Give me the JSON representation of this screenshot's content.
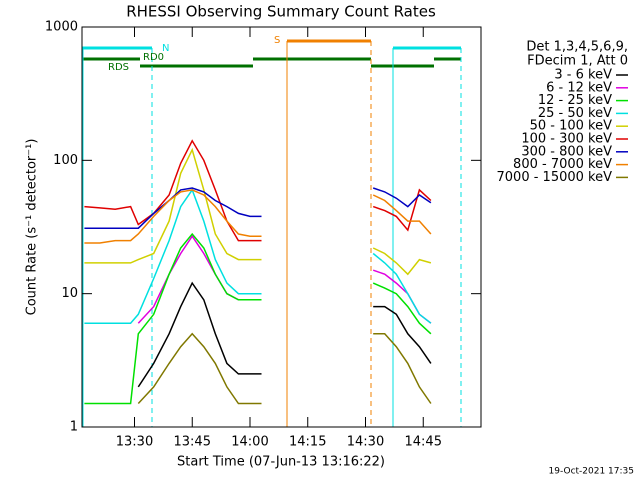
{
  "chart_data": {
    "type": "line",
    "title": "RHESSI Observing Summary Count Rates",
    "x_label": "Start Time (07-Jun-13 13:16:22)",
    "y_label": "Count Rate (s⁻¹ detector⁻¹)",
    "legend_header": [
      "Det 1,3,4,5,6,9,",
      "FDecim 1, Att 0"
    ],
    "flags": [
      "N",
      "RD0",
      "RDS",
      "S"
    ],
    "footer": "19-Oct-2021 17:35",
    "log_scale": true,
    "ylim": [
      1,
      1000
    ],
    "yticks": [
      1,
      10,
      100,
      1000
    ],
    "xlim": [
      "13:16:22",
      "15:00"
    ],
    "xticks": [
      "13:30",
      "13:45",
      "14:00",
      "14:15",
      "14:30",
      "14:45"
    ],
    "x": [
      "13:17",
      "13:21",
      "13:25",
      "13:29",
      "13:31",
      "13:35",
      "13:39",
      "13:42",
      "13:45",
      "13:48",
      "13:51",
      "13:54",
      "13:57",
      "14:00",
      "14:03",
      "14:06",
      "14:32",
      "14:35",
      "14:38",
      "14:41",
      "14:44",
      "14:47",
      "14:50"
    ],
    "series": [
      {
        "name": "3 - 6 keV",
        "color": "#000000",
        "values": [
          null,
          null,
          null,
          null,
          2,
          3,
          5,
          8,
          12,
          9,
          5,
          3,
          2.5,
          2.5,
          2.5,
          null,
          8,
          8,
          7,
          5,
          4,
          3,
          null
        ]
      },
      {
        "name": "6 - 12 keV",
        "color": "#e000e0",
        "values": [
          null,
          null,
          null,
          null,
          6,
          8,
          14,
          20,
          27,
          20,
          14,
          10,
          9,
          9,
          9,
          null,
          15,
          14,
          12,
          10,
          7,
          6,
          null
        ]
      },
      {
        "name": "12 - 25 keV",
        "color": "#00e000",
        "values": [
          1.5,
          1.5,
          1.5,
          1.5,
          5,
          7,
          14,
          22,
          28,
          22,
          14,
          10,
          9,
          9,
          9,
          null,
          12,
          11,
          10,
          8,
          6,
          5,
          null
        ]
      },
      {
        "name": "25 - 50 keV",
        "color": "#00e0e0",
        "values": [
          6,
          6,
          6,
          6,
          7,
          13,
          25,
          45,
          60,
          35,
          18,
          12,
          10,
          10,
          10,
          null,
          20,
          17,
          14,
          10,
          7,
          6,
          null
        ]
      },
      {
        "name": "50 - 100 keV",
        "color": "#d0d000",
        "values": [
          17,
          17,
          17,
          17,
          18,
          20,
          35,
          80,
          120,
          60,
          28,
          20,
          18,
          18,
          18,
          null,
          22,
          20,
          17,
          14,
          18,
          17,
          null
        ]
      },
      {
        "name": "100 - 300 keV",
        "color": "#e00000",
        "values": [
          45,
          44,
          43,
          45,
          33,
          40,
          55,
          95,
          140,
          100,
          60,
          35,
          25,
          25,
          25,
          null,
          45,
          42,
          38,
          30,
          60,
          50,
          null
        ]
      },
      {
        "name": "300 - 800 keV",
        "color": "#0000c0",
        "values": [
          31,
          31,
          31,
          31,
          31,
          40,
          50,
          60,
          62,
          58,
          50,
          45,
          40,
          38,
          38,
          null,
          62,
          58,
          52,
          45,
          55,
          48,
          null
        ]
      },
      {
        "name": "800 - 7000 keV",
        "color": "#f08000",
        "values": [
          24,
          24,
          25,
          25,
          28,
          38,
          50,
          58,
          60,
          55,
          45,
          35,
          28,
          27,
          27,
          null,
          55,
          50,
          42,
          35,
          35,
          28,
          null
        ]
      },
      {
        "name": "7000 - 15000 keV",
        "color": "#807800",
        "values": [
          null,
          null,
          null,
          null,
          1.5,
          2,
          3,
          4,
          5,
          4,
          3,
          2,
          1.5,
          1.5,
          1.5,
          null,
          5,
          5,
          4,
          3,
          2,
          1.5,
          null
        ]
      }
    ]
  }
}
